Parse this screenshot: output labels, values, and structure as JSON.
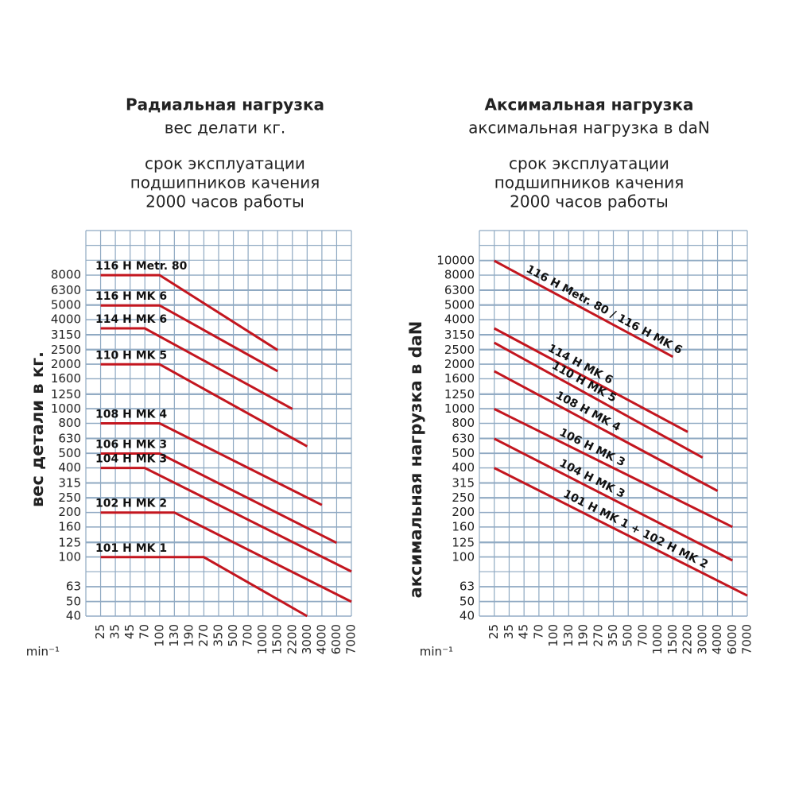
{
  "chart_data": [
    {
      "type": "line",
      "title": "Радиальная нагрузка",
      "subtitle": "вес делати кг.",
      "note": [
        "срок эксплуатации",
        "подшипников качения",
        "2000 часов работы"
      ],
      "ylabel": "вес детали в кг.",
      "xlabel": "min⁻¹",
      "categories": [
        25,
        35,
        45,
        70,
        100,
        130,
        190,
        270,
        350,
        500,
        700,
        1000,
        1500,
        2200,
        3000,
        4000,
        6000,
        7000
      ],
      "yscale": "log",
      "ylim": [
        40,
        16000
      ],
      "yticks": [
        40,
        50,
        63,
        100,
        125,
        160,
        200,
        250,
        315,
        400,
        500,
        630,
        800,
        1000,
        1250,
        1600,
        2000,
        2500,
        3150,
        4000,
        5000,
        6300,
        8000
      ],
      "grid": true,
      "grid_color": "#8fa9c2",
      "label_style": "horizontal",
      "series": [
        {
          "name": "116 H Metr. 80",
          "color": "#c3161f",
          "x": [
            25,
            100,
            1500
          ],
          "values": [
            8000,
            8000,
            2500
          ]
        },
        {
          "name": "116 H MK 6",
          "color": "#c3161f",
          "x": [
            25,
            100,
            1500
          ],
          "values": [
            5000,
            5000,
            1800
          ]
        },
        {
          "name": "114 H MK 6",
          "color": "#c3161f",
          "x": [
            25,
            70,
            2200
          ],
          "values": [
            3500,
            3500,
            1000
          ]
        },
        {
          "name": "110 H MK 5",
          "color": "#c3161f",
          "x": [
            25,
            100,
            3000
          ],
          "values": [
            2000,
            2000,
            560
          ]
        },
        {
          "name": "108 H MK 4",
          "color": "#c3161f",
          "x": [
            25,
            100,
            4000
          ],
          "values": [
            800,
            800,
            225
          ]
        },
        {
          "name": "106 H MK 3",
          "color": "#c3161f",
          "x": [
            25,
            100,
            6000
          ],
          "values": [
            500,
            500,
            125
          ]
        },
        {
          "name": "104 H MK 3",
          "color": "#c3161f",
          "x": [
            25,
            70,
            7000
          ],
          "values": [
            400,
            400,
            80
          ]
        },
        {
          "name": "102 H MK 2",
          "color": "#c3161f",
          "x": [
            25,
            130,
            7000
          ],
          "values": [
            200,
            200,
            50
          ]
        },
        {
          "name": "101 H MK 1",
          "color": "#c3161f",
          "x": [
            25,
            270,
            3000
          ],
          "values": [
            100,
            100,
            40
          ]
        }
      ]
    },
    {
      "type": "line",
      "title": "Аксимальная нагрузка",
      "subtitle": "аксимальная нагрузка в daN",
      "note": [
        "срок эксплуатации",
        "подшипников качения",
        "2000 часов работы"
      ],
      "ylabel": "аксимальная нагрузка в daN",
      "xlabel": "min⁻¹",
      "categories": [
        25,
        35,
        45,
        70,
        100,
        130,
        190,
        270,
        350,
        500,
        700,
        1000,
        1500,
        2200,
        3000,
        4000,
        6000,
        7000
      ],
      "yscale": "log",
      "ylim": [
        40,
        16000
      ],
      "yticks": [
        40,
        50,
        63,
        100,
        125,
        160,
        200,
        250,
        315,
        400,
        500,
        630,
        800,
        1000,
        1250,
        1600,
        2000,
        2500,
        3150,
        4000,
        5000,
        6300,
        8000,
        10000
      ],
      "grid": true,
      "grid_color": "#8fa9c2",
      "label_style": "along",
      "series": [
        {
          "name": "116 H Metr. 80 / 116 H MK 6",
          "color": "#c3161f",
          "x": [
            25,
            1500
          ],
          "values": [
            10000,
            2250
          ]
        },
        {
          "name": "114 H MK 6",
          "color": "#c3161f",
          "x": [
            25,
            2200
          ],
          "values": [
            3500,
            700
          ]
        },
        {
          "name": "110 H MK 5",
          "color": "#c3161f",
          "x": [
            25,
            3000
          ],
          "values": [
            2800,
            470
          ]
        },
        {
          "name": "108 H MK 4",
          "color": "#c3161f",
          "x": [
            25,
            4000
          ],
          "values": [
            1800,
            280
          ]
        },
        {
          "name": "106 H MK 3",
          "color": "#c3161f",
          "x": [
            25,
            6000
          ],
          "values": [
            1000,
            160
          ]
        },
        {
          "name": "104 H MK 3",
          "color": "#c3161f",
          "x": [
            25,
            6000
          ],
          "values": [
            630,
            95
          ]
        },
        {
          "name": "101 H MK 1 + 102 H MK 2",
          "color": "#c3161f",
          "x": [
            25,
            7000
          ],
          "values": [
            400,
            55
          ]
        }
      ]
    }
  ]
}
